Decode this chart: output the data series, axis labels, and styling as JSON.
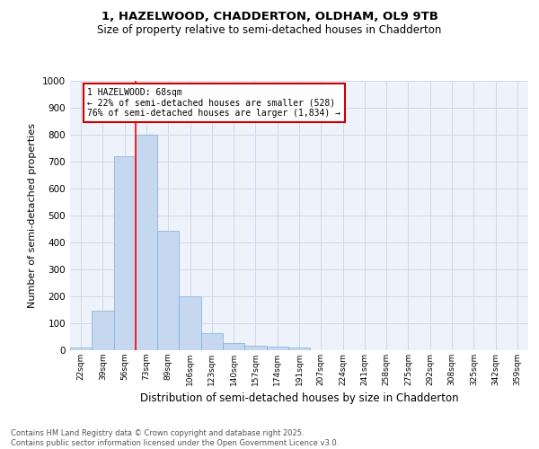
{
  "title1": "1, HAZELWOOD, CHADDERTON, OLDHAM, OL9 9TB",
  "title2": "Size of property relative to semi-detached houses in Chadderton",
  "xlabel": "Distribution of semi-detached houses by size in Chadderton",
  "ylabel": "Number of semi-detached properties",
  "bar_color": "#c5d8ef",
  "bar_edge_color": "#7bafd4",
  "categories": [
    "22sqm",
    "39sqm",
    "56sqm",
    "73sqm",
    "89sqm",
    "106sqm",
    "123sqm",
    "140sqm",
    "157sqm",
    "174sqm",
    "191sqm",
    "207sqm",
    "224sqm",
    "241sqm",
    "258sqm",
    "275sqm",
    "292sqm",
    "308sqm",
    "325sqm",
    "342sqm",
    "359sqm"
  ],
  "values": [
    10,
    148,
    720,
    800,
    445,
    200,
    65,
    28,
    18,
    12,
    10,
    0,
    0,
    0,
    0,
    0,
    0,
    0,
    0,
    0,
    0
  ],
  "ylim": [
    0,
    1000
  ],
  "yticks": [
    0,
    100,
    200,
    300,
    400,
    500,
    600,
    700,
    800,
    900,
    1000
  ],
  "property_label": "1 HAZELWOOD: 68sqm",
  "pct_smaller": 22,
  "count_smaller": 528,
  "pct_larger": 76,
  "count_larger": 1834,
  "vline_x": 2.5,
  "footer_line1": "Contains HM Land Registry data © Crown copyright and database right 2025.",
  "footer_line2": "Contains public sector information licensed under the Open Government Licence v3.0.",
  "grid_color": "#d0d8ea",
  "background_color": "#eef2fa"
}
